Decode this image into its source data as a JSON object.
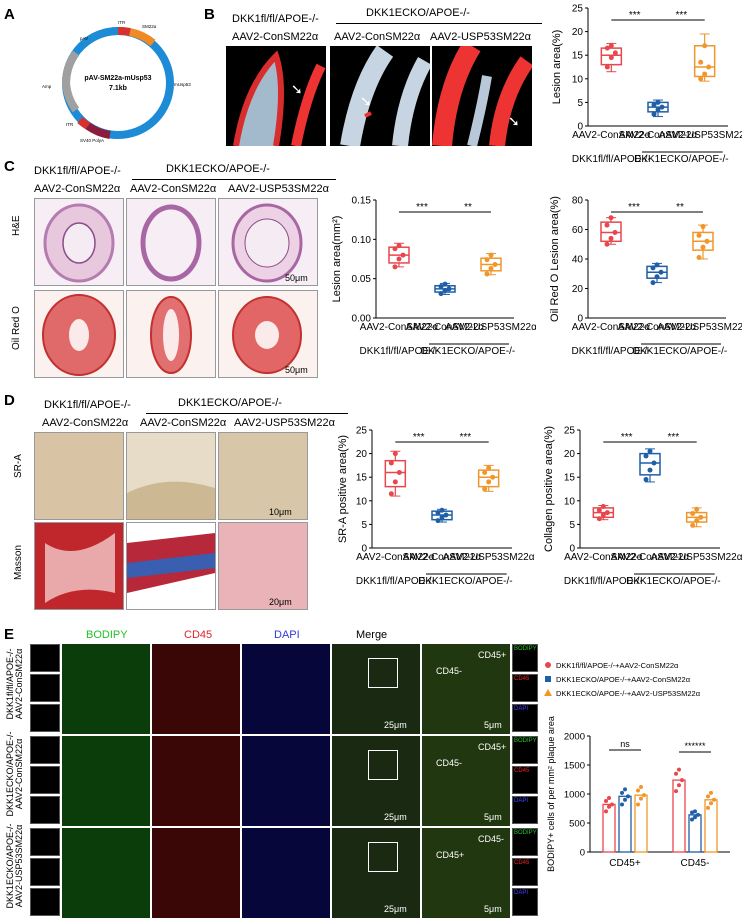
{
  "panels": {
    "A": {
      "letter": "A",
      "plasmid": {
        "name": "pAV-SM22a-mUsp53",
        "size": "7.1kb",
        "features": [
          "pAV",
          "ITR",
          "SM22a",
          "mUsp53",
          "ITR",
          "SV40 PolyA",
          "Amp"
        ]
      }
    },
    "B": {
      "letter": "B",
      "groups": {
        "g1_line1": "DKK1fl/fl/APOE-/-",
        "g1_line2": "AAV2-ConSM22α",
        "g2_header": "DKK1ECKO/APOE-/-",
        "g2_line2": "AAV2-ConSM22α",
        "g3_line2": "AAV2-USP53SM22α"
      }
    },
    "C": {
      "letter": "C",
      "rows": [
        "H&E",
        "Oil Red O"
      ],
      "scale": "50μm",
      "groups": {
        "g1_line1": "DKK1fl/fl/APOE-/-",
        "g1_line2": "AAV2-ConSM22α",
        "g2_header": "DKK1ECKO/APOE-/-",
        "g2_line2": "AAV2-ConSM22α",
        "g3_line2": "AAV2-USP53SM22α"
      }
    },
    "D": {
      "letter": "D",
      "rows": [
        "SR-A",
        "Masson"
      ],
      "scale1": "10μm",
      "scale2": "20μm",
      "groups": {
        "g1_line1": "DKK1fl/fl/APOE-/-",
        "g1_line2": "AAV2-ConSM22α",
        "g2_header": "DKK1ECKO/APOE-/-",
        "g2_line2": "AAV2-ConSM22α",
        "g3_line2": "AAV2-USP53SM22α"
      }
    },
    "E": {
      "letter": "E",
      "channels": [
        "BODIPY",
        "CD45",
        "DAPI",
        "Merge"
      ],
      "row_labels": [
        "DKK1fl/fl/APOE-/- AAV2-ConSM22α",
        "DKK1ECKO/APOE-/- AAV2-ConSM22α",
        "DKK1ECKO/APOE-/- AAV2-USP53SM22α"
      ],
      "scale_merge": "25μm",
      "scale_zoom": "5μm",
      "zoom_tags": [
        "CD45-",
        "CD45+"
      ],
      "side_tags": [
        "BODIPY",
        "CD45",
        "DAPI"
      ]
    }
  },
  "colors": {
    "red": "#e8474d",
    "blue": "#1f5fa8",
    "orange": "#f0962b"
  },
  "chart_data": [
    {
      "id": "B-lesion",
      "type": "box",
      "ylabel": "Lesion area(%)",
      "ylim": [
        0,
        25
      ],
      "yticks": [
        0,
        5,
        10,
        15,
        20,
        25
      ],
      "categories": [
        "AAV2-ConSM22α",
        "AAV2-ConSM22α",
        "AAV2-USP53SM22α"
      ],
      "groups": [
        "DKK1fl/fl/APOE-/-",
        "DKK1ECKO/APOE-/-"
      ],
      "series": [
        {
          "color": "red",
          "min": 11.5,
          "q1": 13,
          "median": 15,
          "q3": 16.5,
          "max": 17.5,
          "points": [
            12.5,
            14.5,
            15.5,
            16.5,
            17
          ]
        },
        {
          "color": "blue",
          "min": 2,
          "q1": 3,
          "median": 4,
          "q3": 5,
          "max": 5.5,
          "points": [
            2.5,
            3.5,
            4,
            4.5,
            5
          ]
        },
        {
          "color": "orange",
          "min": 9.5,
          "q1": 10.5,
          "median": 12.5,
          "q3": 17,
          "max": 19.5,
          "points": [
            10,
            11,
            12.5,
            13.5,
            17
          ]
        }
      ],
      "significance": [
        "***",
        "***"
      ]
    },
    {
      "id": "C-lesion-mm2",
      "type": "box",
      "ylabel": "Lesion area(mm²)",
      "ylim": [
        0,
        0.15
      ],
      "yticks": [
        "0.00",
        "0.05",
        "0.10",
        "0.15"
      ],
      "categories": [
        "AAV2-ConSM22α",
        "AAV2-ConSM22α",
        "AAV2-USP53SM22α"
      ],
      "groups": [
        "DKK1fl/fl/APOE-/-",
        "DKK1ECKO/APOE-/-"
      ],
      "series": [
        {
          "color": "red",
          "min": 0.065,
          "q1": 0.07,
          "median": 0.08,
          "q3": 0.09,
          "max": 0.095,
          "points": [
            0.065,
            0.075,
            0.08,
            0.088,
            0.092
          ]
        },
        {
          "color": "blue",
          "min": 0.03,
          "q1": 0.033,
          "median": 0.037,
          "q3": 0.041,
          "max": 0.044,
          "points": [
            0.031,
            0.035,
            0.037,
            0.04,
            0.043
          ]
        },
        {
          "color": "orange",
          "min": 0.055,
          "q1": 0.06,
          "median": 0.068,
          "q3": 0.076,
          "max": 0.082,
          "points": [
            0.056,
            0.063,
            0.068,
            0.074,
            0.08
          ]
        }
      ],
      "significance": [
        "***",
        "**"
      ]
    },
    {
      "id": "C-oilredo",
      "type": "box",
      "ylabel": "Oil Red O Lesion area(%)",
      "ylim": [
        0,
        80
      ],
      "yticks": [
        0,
        20,
        40,
        60,
        80
      ],
      "categories": [
        "AAV2-ConSM22α",
        "AAV2-ConSM22α",
        "AAV2-USP53SM22α"
      ],
      "groups": [
        "DKK1fl/fl/APOE-/-",
        "DKK1ECKO/APOE-/-"
      ],
      "series": [
        {
          "color": "red",
          "min": 50,
          "q1": 52,
          "median": 58,
          "q3": 65,
          "max": 68,
          "points": [
            50,
            54,
            58,
            63,
            68
          ]
        },
        {
          "color": "blue",
          "min": 24,
          "q1": 27,
          "median": 31,
          "q3": 35,
          "max": 37,
          "points": [
            24,
            28,
            31,
            34,
            36
          ]
        },
        {
          "color": "orange",
          "min": 40,
          "q1": 46,
          "median": 52,
          "q3": 58,
          "max": 63,
          "points": [
            41,
            48,
            52,
            56,
            62
          ]
        }
      ],
      "significance": [
        "***",
        "**"
      ]
    },
    {
      "id": "D-sra",
      "type": "box",
      "ylabel": "SR-A positive area(%)",
      "ylim": [
        0,
        25
      ],
      "yticks": [
        0,
        5,
        10,
        15,
        20,
        25
      ],
      "categories": [
        "AAV2-ConSM22α",
        "AAV2-ConSM22α",
        "AAV2-USP53SM22α"
      ],
      "groups": [
        "DKK1fl/fl/APOE-/-",
        "DKK1ECKO/APOE-/-"
      ],
      "series": [
        {
          "color": "red",
          "min": 11,
          "q1": 13,
          "median": 16,
          "q3": 18.5,
          "max": 20.5,
          "points": [
            11.5,
            14,
            16,
            18,
            20
          ]
        },
        {
          "color": "blue",
          "min": 5.5,
          "q1": 6,
          "median": 7,
          "q3": 7.8,
          "max": 8.2,
          "points": [
            5.8,
            6.5,
            7,
            7.5,
            8
          ]
        },
        {
          "color": "orange",
          "min": 12,
          "q1": 13,
          "median": 15,
          "q3": 16.5,
          "max": 17.5,
          "points": [
            12.5,
            14,
            15,
            16,
            17
          ]
        }
      ],
      "significance": [
        "***",
        "***"
      ]
    },
    {
      "id": "D-collagen",
      "type": "box",
      "ylabel": "Collagen positive area(%)",
      "ylim": [
        0,
        25
      ],
      "yticks": [
        0,
        5,
        10,
        15,
        20,
        25
      ],
      "categories": [
        "AAV2-ConSM22α",
        "AAV2-ConSM22α",
        "AAV2-USP53SM22α"
      ],
      "groups": [
        "DKK1fl/fl/APOE-/-",
        "DKK1ECKO/APOE-/-"
      ],
      "series": [
        {
          "color": "red",
          "min": 6,
          "q1": 6.5,
          "median": 7.5,
          "q3": 8.5,
          "max": 9,
          "points": [
            6.2,
            7,
            7.5,
            8,
            8.8
          ]
        },
        {
          "color": "blue",
          "min": 14,
          "q1": 15.5,
          "median": 18,
          "q3": 20,
          "max": 21,
          "points": [
            14.5,
            16.5,
            18,
            19.5,
            20.5
          ]
        },
        {
          "color": "orange",
          "min": 4.5,
          "q1": 5.5,
          "median": 6.5,
          "q3": 7.5,
          "max": 8.5,
          "points": [
            4.8,
            5.8,
            6.5,
            7.3,
            8.2
          ]
        }
      ],
      "significance": [
        "***",
        "***"
      ]
    },
    {
      "id": "E-bodipy",
      "type": "bar",
      "ylabel": "BODIPY+ cells of per mm² plaque area",
      "ylim": [
        0,
        2000
      ],
      "yticks": [
        0,
        500,
        1000,
        1500,
        2000
      ],
      "categories": [
        "CD45+",
        "CD45-"
      ],
      "legend": [
        "DKK1fl/fl/APOE-/-+AAV2-ConSM22α",
        "DKK1ECKO/APOE-/-+AAV2-ConSM22α",
        "DKK1ECKO/APOE-/-+AAV2-USP53SM22α"
      ],
      "series": [
        {
          "color": "red",
          "values": [
            820,
            1240
          ],
          "points": [
            [
              700,
              780,
              820,
              880,
              930
            ],
            [
              1050,
              1150,
              1240,
              1350,
              1420
            ]
          ]
        },
        {
          "color": "blue",
          "values": [
            960,
            640
          ],
          "points": [
            [
              820,
              900,
              960,
              1020,
              1080
            ],
            [
              560,
              600,
              640,
              680,
              700
            ]
          ]
        },
        {
          "color": "orange",
          "values": [
            980,
            900
          ],
          "points": [
            [
              820,
              920,
              980,
              1060,
              1120
            ],
            [
              760,
              840,
              900,
              960,
              1020
            ]
          ]
        }
      ],
      "significance": [
        "ns",
        "******"
      ]
    }
  ]
}
